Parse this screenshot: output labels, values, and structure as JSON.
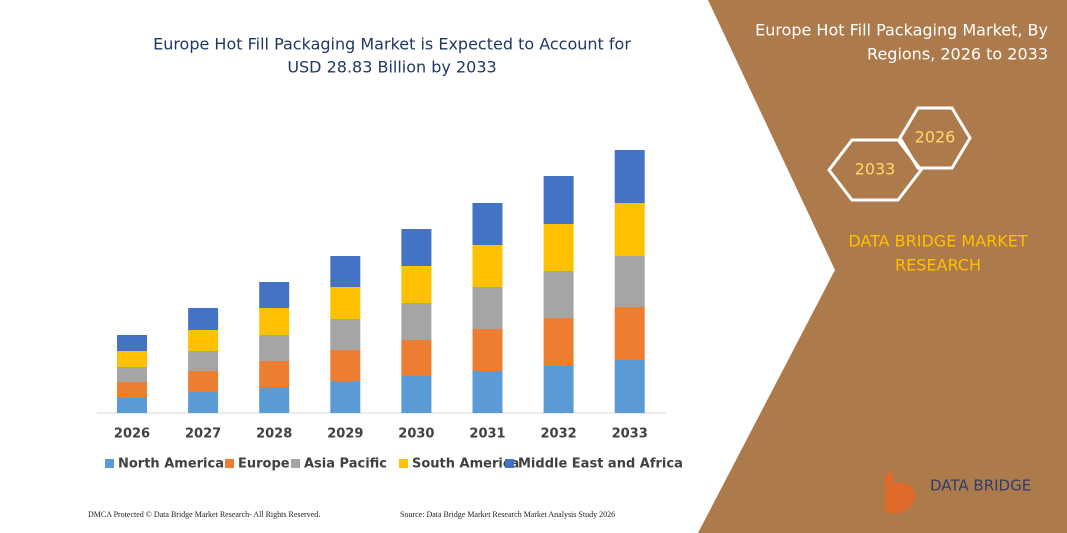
{
  "chart_data": {
    "type": "stacked_bar",
    "title": [
      "Europe Hot Fill Packaging Market is Expected to Account for",
      "USD 28.83 Billion by 2033"
    ],
    "categories": [
      "2026",
      "2027",
      "2028",
      "2029",
      "2030",
      "2031",
      "2032",
      "2033"
    ],
    "series": [
      {
        "name": "North America",
        "color": "#5b9bd5",
        "values": [
          15,
          21,
          26,
          32,
          37,
          42,
          47,
          53
        ]
      },
      {
        "name": "Europe",
        "color": "#ed7d31",
        "values": [
          16,
          21,
          26,
          31,
          36,
          42,
          48,
          53
        ]
      },
      {
        "name": "Asia Pacific",
        "color": "#a5a5a5",
        "values": [
          15,
          20,
          26,
          31,
          37,
          42,
          47,
          51
        ]
      },
      {
        "name": "South America",
        "color": "#ffc000",
        "values": [
          16,
          21,
          27,
          32,
          37,
          42,
          47,
          53
        ]
      },
      {
        "name": "Middle East and Africa",
        "color": "#4472c4",
        "values": [
          16,
          22,
          26,
          31,
          37,
          42,
          48,
          53
        ]
      }
    ]
  },
  "panel": {
    "title": [
      "Europe Hot Fill Packaging Market, By",
      "Regions, 2026 to 2033"
    ],
    "hex_left": "2033",
    "hex_right": "2026",
    "brand": [
      "DATA BRIDGE MARKET",
      "RESEARCH"
    ],
    "logo": "DATA BRIDGE"
  },
  "footer": {
    "left": "DMCA Protected © Data Bridge Market Research-  All Rights Reserved.",
    "right": "Source: Data Bridge Market Research  Market Analysis Study 2026"
  }
}
